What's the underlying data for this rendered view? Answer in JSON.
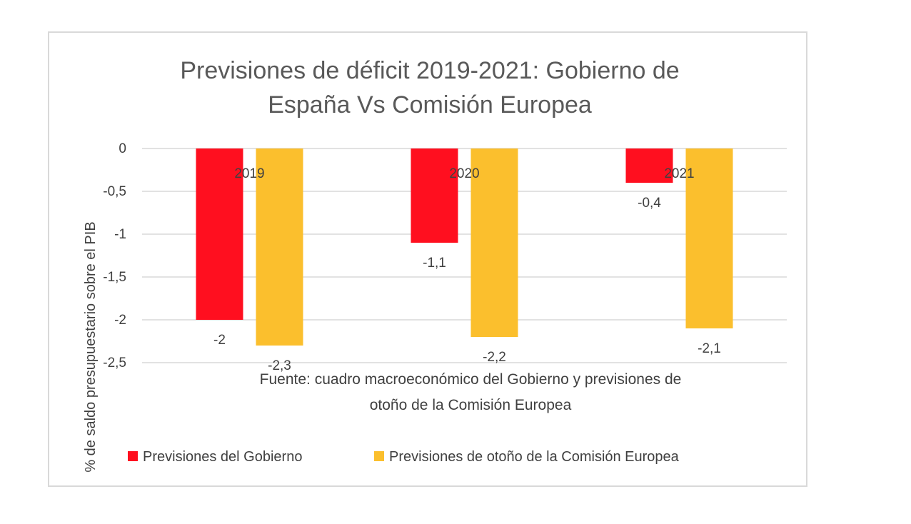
{
  "chart_data": {
    "type": "bar",
    "title": "Previsiones de déficit 2019-2021: Gobierno de España Vs Comisión Europea",
    "title_lines": [
      "Previsiones de déficit 2019-2021: Gobierno de",
      "España Vs Comisión Europea"
    ],
    "ylabel": "% de saldo presupuestario sobre el PIB",
    "xlabel": "",
    "categories": [
      "2019",
      "2020",
      "2021"
    ],
    "series": [
      {
        "name": "Previsiones del Gobierno",
        "color": "#ff0f1f",
        "values": [
          -2,
          -1.1,
          -0.4
        ],
        "labels": [
          "-2",
          "-1,1",
          "-0,4"
        ]
      },
      {
        "name": "Previsiones de otoño de la Comisión Europea",
        "color": "#fbbf2d",
        "values": [
          -2.3,
          -2.2,
          -2.1
        ],
        "labels": [
          "-2,3",
          "-2,2",
          "-2,1"
        ]
      }
    ],
    "ylim": [
      -2.5,
      0
    ],
    "yticks": [
      0,
      -0.5,
      -1,
      -1.5,
      -2,
      -2.5
    ],
    "ytick_labels": [
      "0",
      "-0,5",
      "-1",
      "-1,5",
      "-2",
      "-2,5"
    ],
    "grid": true,
    "annotation_lines": [
      "Fuente: cuadro macroeconómico del Gobierno y previsiones de",
      "otoño de la Comisión Europea"
    ],
    "legend_position": "bottom"
  }
}
